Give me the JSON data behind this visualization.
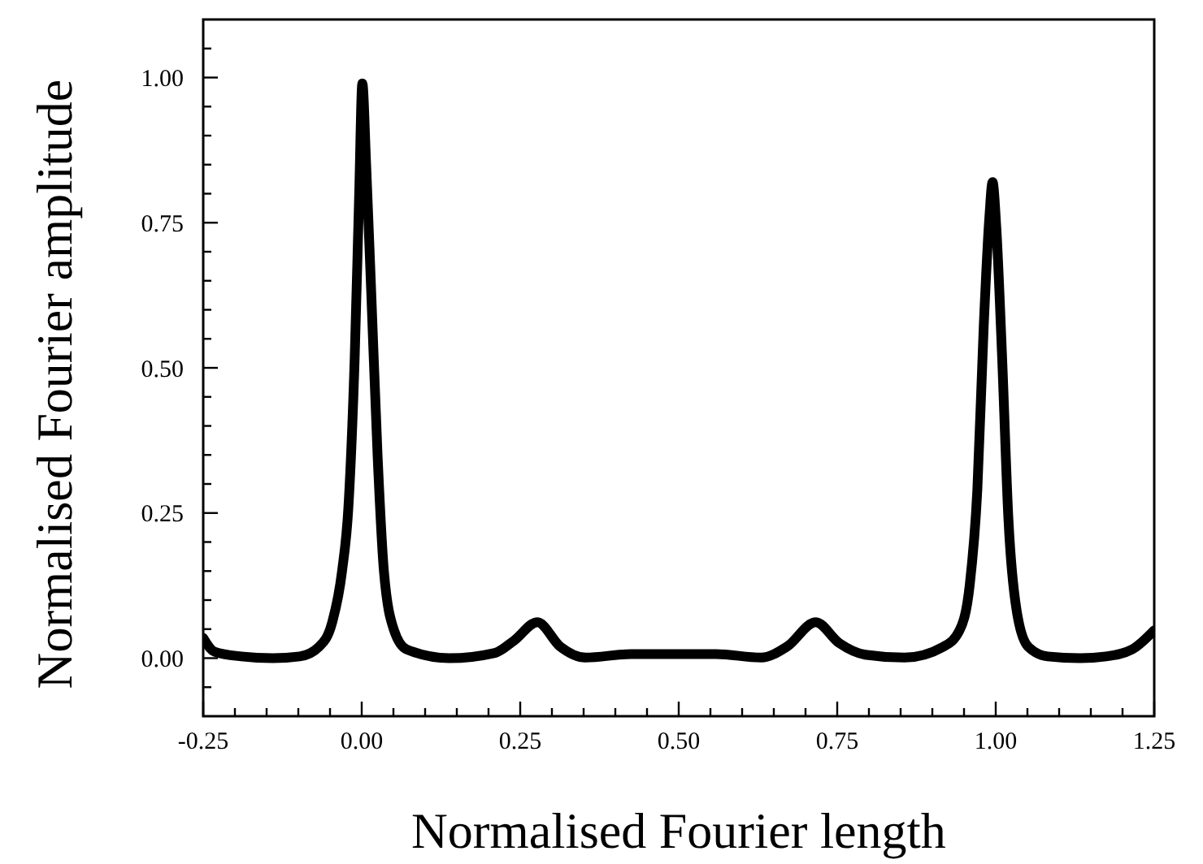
{
  "chart_data": {
    "type": "line",
    "xlabel": "Normalised Fourier length",
    "ylabel": "Normalised Fourier amplitude",
    "xlim": [
      -0.25,
      1.25
    ],
    "ylim": [
      -0.1,
      1.1
    ],
    "xticks": [
      {
        "value": -0.25,
        "label": "-0.25"
      },
      {
        "value": -0.2,
        "label": null
      },
      {
        "value": -0.15,
        "label": null
      },
      {
        "value": -0.1,
        "label": null
      },
      {
        "value": -0.05,
        "label": null
      },
      {
        "value": 0,
        "label": "0.00"
      },
      {
        "value": 0.05,
        "label": null
      },
      {
        "value": 0.1,
        "label": null
      },
      {
        "value": 0.15,
        "label": null
      },
      {
        "value": 0.2,
        "label": null
      },
      {
        "value": 0.25,
        "label": "0.25"
      },
      {
        "value": 0.3,
        "label": null
      },
      {
        "value": 0.35,
        "label": null
      },
      {
        "value": 0.4,
        "label": null
      },
      {
        "value": 0.45,
        "label": null
      },
      {
        "value": 0.5,
        "label": "0.50"
      },
      {
        "value": 0.55,
        "label": null
      },
      {
        "value": 0.6,
        "label": null
      },
      {
        "value": 0.65,
        "label": null
      },
      {
        "value": 0.7,
        "label": null
      },
      {
        "value": 0.75,
        "label": "0.75"
      },
      {
        "value": 0.8,
        "label": null
      },
      {
        "value": 0.85,
        "label": null
      },
      {
        "value": 0.9,
        "label": null
      },
      {
        "value": 0.95,
        "label": null
      },
      {
        "value": 1,
        "label": "1.00"
      },
      {
        "value": 1.05,
        "label": null
      },
      {
        "value": 1.1,
        "label": null
      },
      {
        "value": 1.15,
        "label": null
      },
      {
        "value": 1.2,
        "label": null
      },
      {
        "value": 1.25,
        "label": "1.25"
      }
    ],
    "yticks": [
      {
        "value": -0.05,
        "label": null
      },
      {
        "value": 0,
        "label": "0.00"
      },
      {
        "value": 0.05,
        "label": null
      },
      {
        "value": 0.1,
        "label": null
      },
      {
        "value": 0.15,
        "label": null
      },
      {
        "value": 0.2,
        "label": null
      },
      {
        "value": 0.25,
        "label": "0.25"
      },
      {
        "value": 0.3,
        "label": null
      },
      {
        "value": 0.35,
        "label": null
      },
      {
        "value": 0.4,
        "label": null
      },
      {
        "value": 0.45,
        "label": null
      },
      {
        "value": 0.5,
        "label": "0.50"
      },
      {
        "value": 0.55,
        "label": null
      },
      {
        "value": 0.6,
        "label": null
      },
      {
        "value": 0.65,
        "label": null
      },
      {
        "value": 0.7,
        "label": null
      },
      {
        "value": 0.75,
        "label": "0.75"
      },
      {
        "value": 0.8,
        "label": null
      },
      {
        "value": 0.85,
        "label": null
      },
      {
        "value": 0.9,
        "label": null
      },
      {
        "value": 0.95,
        "label": null
      },
      {
        "value": 1,
        "label": "1.00"
      },
      {
        "value": 1.05,
        "label": null
      }
    ],
    "grid": false,
    "marker": "none",
    "line_style": "solid",
    "series": [
      {
        "color": "#000000",
        "x": [
          -0.25,
          -0.232,
          -0.19,
          -0.14,
          -0.098,
          -0.067,
          -0.047,
          -0.031,
          -0.021,
          -0.011,
          -0.004,
          0.001,
          0.007,
          0.015,
          0.025,
          0.035,
          0.051,
          0.071,
          0.138,
          0.21,
          0.24,
          0.277,
          0.313,
          0.353,
          0.425,
          0.559,
          0.63,
          0.671,
          0.716,
          0.753,
          0.794,
          0.856,
          0.918,
          0.943,
          0.959,
          0.971,
          0.981,
          0.99,
          0.995,
          1.001,
          1.01,
          1.02,
          1.033,
          1.051,
          1.082,
          1.133,
          1.174,
          1.215,
          1.25
        ],
        "values": [
          0.035,
          0.011,
          0.003,
          0.0,
          0.003,
          0.02,
          0.06,
          0.15,
          0.26,
          0.52,
          0.8,
          0.99,
          0.85,
          0.63,
          0.35,
          0.15,
          0.048,
          0.015,
          0.0,
          0.009,
          0.03,
          0.062,
          0.02,
          0.001,
          0.007,
          0.007,
          0.001,
          0.02,
          0.062,
          0.026,
          0.006,
          0.001,
          0.02,
          0.048,
          0.126,
          0.29,
          0.57,
          0.76,
          0.82,
          0.74,
          0.52,
          0.24,
          0.082,
          0.02,
          0.003,
          0.0,
          0.003,
          0.015,
          0.048
        ]
      }
    ]
  }
}
